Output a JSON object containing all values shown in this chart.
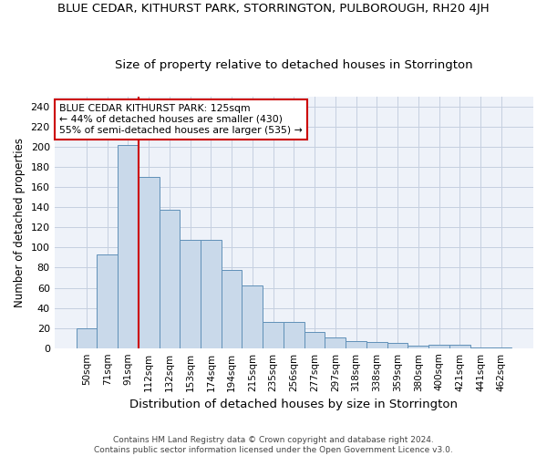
{
  "title": "BLUE CEDAR, KITHURST PARK, STORRINGTON, PULBOROUGH, RH20 4JH",
  "subtitle": "Size of property relative to detached houses in Storrington",
  "xlabel": "Distribution of detached houses by size in Storrington",
  "ylabel": "Number of detached properties",
  "categories": [
    "50sqm",
    "71sqm",
    "91sqm",
    "112sqm",
    "132sqm",
    "153sqm",
    "174sqm",
    "194sqm",
    "215sqm",
    "235sqm",
    "256sqm",
    "277sqm",
    "297sqm",
    "318sqm",
    "338sqm",
    "359sqm",
    "380sqm",
    "400sqm",
    "421sqm",
    "441sqm",
    "462sqm"
  ],
  "values": [
    20,
    93,
    202,
    170,
    138,
    108,
    108,
    78,
    62,
    26,
    26,
    16,
    11,
    7,
    6,
    5,
    2,
    3,
    3,
    1,
    1
  ],
  "bar_color": "#c9d9ea",
  "bar_edge_color": "#6090b8",
  "grid_color": "#c5cfe0",
  "background_color": "#eef2f9",
  "vline_x_index": 3,
  "vline_color": "#cc0000",
  "annotation_title": "BLUE CEDAR KITHURST PARK: 125sqm",
  "annotation_line1": "← 44% of detached houses are smaller (430)",
  "annotation_line2": "55% of semi-detached houses are larger (535) →",
  "annotation_box_color": "#ffffff",
  "annotation_box_edge": "#cc0000",
  "footer1": "Contains HM Land Registry data © Crown copyright and database right 2024.",
  "footer2": "Contains public sector information licensed under the Open Government Licence v3.0.",
  "ylim": [
    0,
    250
  ],
  "yticks": [
    0,
    20,
    40,
    60,
    80,
    100,
    120,
    140,
    160,
    180,
    200,
    220,
    240
  ]
}
